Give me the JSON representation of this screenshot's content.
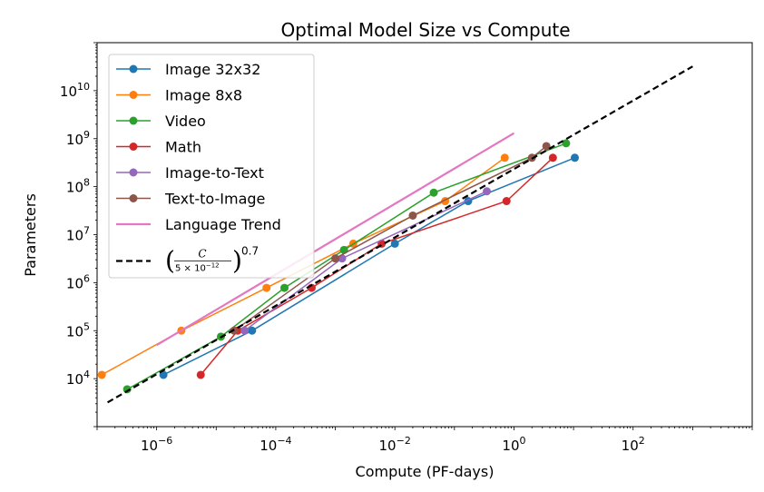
{
  "chart_data": {
    "type": "line",
    "title": "Optimal Model Size vs Compute",
    "xlabel": "Compute (PF-days)",
    "ylabel": "Parameters",
    "xscale": "log",
    "yscale": "log",
    "xlim": [
      1e-07,
      10000.0
    ],
    "ylim": [
      1000,
      100000000000.0
    ],
    "xticks": [
      {
        "value": 1e-06,
        "base": "10",
        "exp": "−6"
      },
      {
        "value": 0.0001,
        "base": "10",
        "exp": "−4"
      },
      {
        "value": 0.01,
        "base": "10",
        "exp": "−2"
      },
      {
        "value": 1,
        "base": "10",
        "exp": "0"
      },
      {
        "value": 100,
        "base": "10",
        "exp": "2"
      }
    ],
    "yticks": [
      {
        "value": 10000.0,
        "base": "10",
        "exp": "4"
      },
      {
        "value": 100000.0,
        "base": "10",
        "exp": "5"
      },
      {
        "value": 1000000.0,
        "base": "10",
        "exp": "6"
      },
      {
        "value": 10000000.0,
        "base": "10",
        "exp": "7"
      },
      {
        "value": 100000000.0,
        "base": "10",
        "exp": "8"
      },
      {
        "value": 1000000000.0,
        "base": "10",
        "exp": "9"
      },
      {
        "value": 10000000000.0,
        "base": "10",
        "exp": "10"
      }
    ],
    "grid": false,
    "legend_position": "upper-left",
    "series": [
      {
        "name": "Image 32x32",
        "color": "#1f77b4",
        "marker": "circle",
        "x": [
          1.3e-06,
          4e-05,
          0.01,
          0.17,
          10.5
        ],
        "y": [
          12000,
          100000,
          6500000,
          50000000,
          400000000
        ]
      },
      {
        "name": "Image 8x8",
        "color": "#ff7f0e",
        "marker": "circle",
        "x": [
          1.2e-07,
          2.6e-06,
          7e-05,
          0.002,
          0.07,
          0.7
        ],
        "y": [
          12000,
          100000,
          780000,
          6500000,
          50000000,
          400000000
        ]
      },
      {
        "name": "Video",
        "color": "#2ca02c",
        "marker": "circle",
        "x": [
          3.2e-07,
          1.2e-05,
          0.00014,
          0.0014,
          0.045,
          7.5
        ],
        "y": [
          6000,
          75000,
          780000,
          4800000,
          75000000,
          800000000
        ]
      },
      {
        "name": "Math",
        "color": "#d62728",
        "marker": "circle",
        "x": [
          5.5e-06,
          2.3e-05,
          0.0004,
          0.006,
          0.75,
          4.5
        ],
        "y": [
          12000,
          100000,
          780000,
          6500000,
          50000000,
          400000000
        ]
      },
      {
        "name": "Image-to-Text",
        "color": "#9467bd",
        "marker": "circle",
        "x": [
          3e-05,
          0.0013,
          0.35
        ],
        "y": [
          100000,
          3200000,
          80000000
        ]
      },
      {
        "name": "Text-to-Image",
        "color": "#8c564b",
        "marker": "circle",
        "x": [
          2e-05,
          0.001,
          0.02,
          2,
          3.5
        ],
        "y": [
          100000,
          3200000,
          25000000,
          400000000,
          700000000
        ]
      },
      {
        "name": "Language Trend",
        "color": "#e377c2",
        "marker": "none",
        "x": [
          1e-06,
          1
        ],
        "y": [
          50000,
          1300000000
        ]
      }
    ],
    "reference_line": {
      "name_formula": {
        "numerator": "C",
        "denominator": "5 × 10",
        "denominator_exp": "−12",
        "power": "0.7"
      },
      "color": "#000000",
      "dash": "dashed",
      "x": [
        1.5e-07,
        1000
      ],
      "y": [
        3200,
        32000000000
      ]
    }
  }
}
